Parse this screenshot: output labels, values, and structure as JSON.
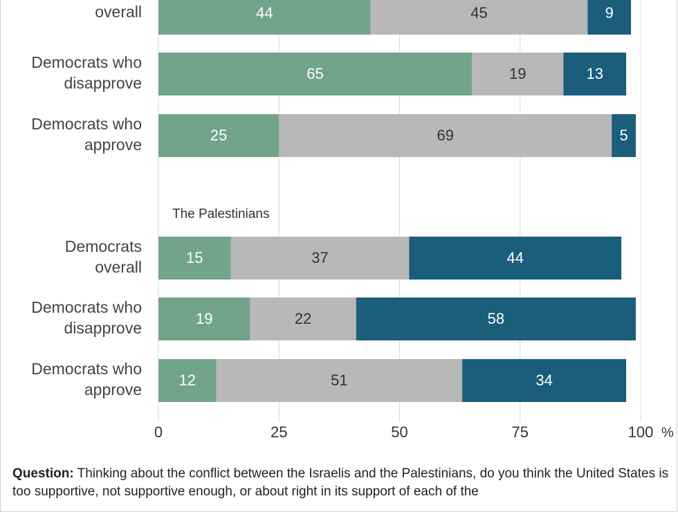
{
  "chart_data": {
    "type": "bar",
    "orientation": "horizontal",
    "stacked": true,
    "groups": [
      {
        "title": "",
        "categories": [
          "Democrats overall",
          "Democrats who disapprove",
          "Democrats who approve"
        ],
        "category_lines": [
          [
            "overall"
          ],
          [
            "Democrats who",
            "disapprove"
          ],
          [
            "Democrats who",
            "approve"
          ]
        ],
        "series": [
          {
            "values": [
              44,
              65,
              25
            ]
          },
          {
            "values": [
              45,
              19,
              69
            ]
          },
          {
            "values": [
              9,
              13,
              5
            ]
          }
        ]
      },
      {
        "title": "The Palestinians",
        "categories": [
          "Democrats overall",
          "Democrats who disapprove",
          "Democrats who approve"
        ],
        "category_lines": [
          [
            "Democrats",
            "overall"
          ],
          [
            "Democrats who",
            "disapprove"
          ],
          [
            "Democrats who",
            "approve"
          ]
        ],
        "series": [
          {
            "values": [
              15,
              19,
              12
            ]
          },
          {
            "values": [
              37,
              22,
              51
            ]
          },
          {
            "values": [
              44,
              58,
              34
            ]
          }
        ]
      }
    ],
    "series_colors": [
      "#72a48a",
      "#b8b8b8",
      "#1a5e7c"
    ],
    "label_colors": [
      "#ffffff",
      "#333333",
      "#ffffff"
    ],
    "xlim": [
      0,
      100
    ],
    "xticks": [
      "0",
      "25",
      "50",
      "75",
      "100"
    ],
    "xtick_suffix": "%",
    "grid": true,
    "legend": "none"
  },
  "footer": {
    "question_label": "Question:",
    "question_text": " Thinking about the conflict between the Israelis and the Palestinians, do you think the United States is too supportive, not supportive enough, or about right in its support of each of the"
  }
}
